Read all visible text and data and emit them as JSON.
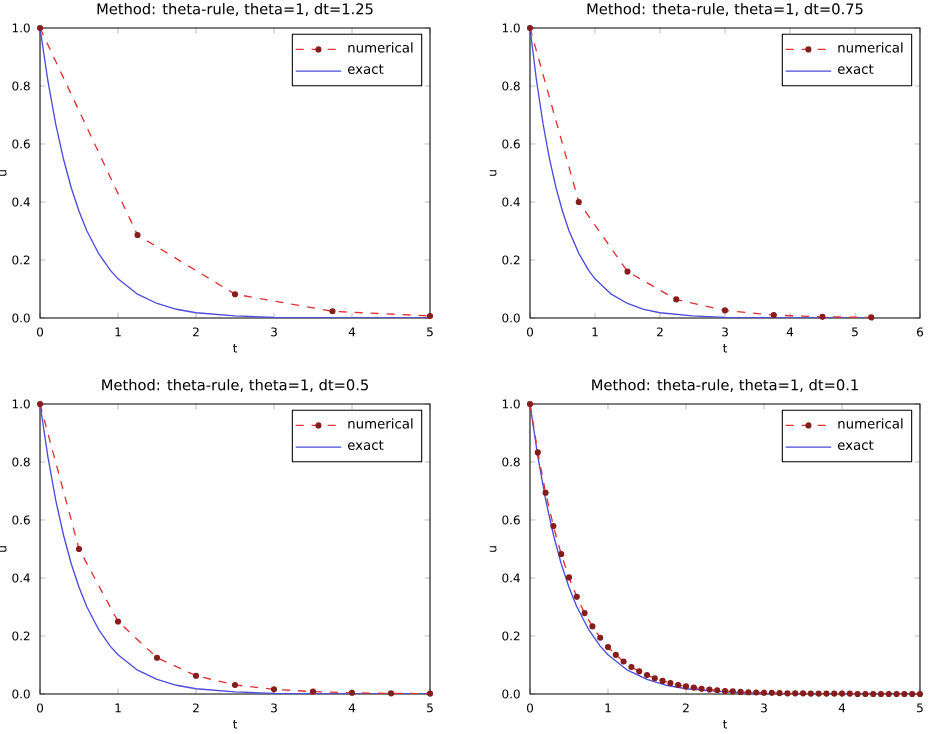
{
  "chart_data": [
    {
      "type": "line",
      "title": "Method: theta-rule, theta=1, dt=1.25",
      "xlabel": "t",
      "ylabel": "u",
      "legend": "top right",
      "xlim": [
        0,
        5
      ],
      "xticks": [
        0,
        1,
        2,
        3,
        4,
        5
      ],
      "ylim": [
        0,
        1
      ],
      "yticks": [
        {
          "value": 0,
          "label": "0.0"
        },
        {
          "value": 0.2,
          "label": "0.2"
        },
        {
          "value": 0.4,
          "label": "0.4"
        },
        {
          "value": 0.6,
          "label": "0.6"
        },
        {
          "value": 0.8,
          "label": "0.8"
        },
        {
          "value": 1,
          "label": "1.0"
        }
      ],
      "series": [
        {
          "name": "numerical",
          "color": "#e03030",
          "line_style": "dashed",
          "marker": "circle",
          "x": [
            0,
            1.25,
            2.5,
            3.75,
            5
          ],
          "values": [
            1,
            0.286,
            0.082,
            0.023,
            0.007
          ]
        },
        {
          "name": "exact",
          "color": "#4b4bdc",
          "line_style": "solid",
          "marker": "none",
          "x": [
            0,
            0.1,
            0.2,
            0.3,
            0.4,
            0.5,
            0.6,
            0.75,
            0.9,
            1,
            1.25,
            1.5,
            1.75,
            2,
            2.5,
            3,
            3.5,
            4,
            5
          ],
          "values": [
            1,
            0.819,
            0.67,
            0.549,
            0.449,
            0.368,
            0.301,
            0.223,
            0.165,
            0.135,
            0.082,
            0.05,
            0.03,
            0.018,
            0.007,
            0.002,
            0.001,
            0,
            0
          ]
        }
      ]
    },
    {
      "type": "line",
      "title": "Method: theta-rule, theta=1, dt=0.75",
      "xlabel": "t",
      "ylabel": "u",
      "legend": "top right",
      "xlim": [
        0,
        6
      ],
      "xticks": [
        0,
        1,
        2,
        3,
        4,
        5,
        6
      ],
      "ylim": [
        0,
        1
      ],
      "yticks": [
        {
          "value": 0,
          "label": "0.0"
        },
        {
          "value": 0.2,
          "label": "0.2"
        },
        {
          "value": 0.4,
          "label": "0.4"
        },
        {
          "value": 0.6,
          "label": "0.6"
        },
        {
          "value": 0.8,
          "label": "0.8"
        },
        {
          "value": 1,
          "label": "1.0"
        }
      ],
      "series": [
        {
          "name": "numerical",
          "color": "#e03030",
          "line_style": "dashed",
          "marker": "circle",
          "x": [
            0,
            0.75,
            1.5,
            2.25,
            3,
            3.75,
            4.5,
            5.25
          ],
          "values": [
            1,
            0.4,
            0.16,
            0.064,
            0.026,
            0.01,
            0.004,
            0.002
          ]
        },
        {
          "name": "exact",
          "color": "#4b4bdc",
          "line_style": "solid",
          "marker": "none",
          "x": [
            0,
            0.1,
            0.2,
            0.3,
            0.4,
            0.5,
            0.6,
            0.75,
            0.9,
            1,
            1.25,
            1.5,
            1.75,
            2,
            2.5,
            3,
            3.5,
            4,
            5,
            5.25
          ],
          "values": [
            1,
            0.819,
            0.67,
            0.549,
            0.449,
            0.368,
            0.301,
            0.223,
            0.165,
            0.135,
            0.082,
            0.05,
            0.03,
            0.018,
            0.007,
            0.002,
            0.001,
            0,
            0,
            0
          ]
        }
      ]
    },
    {
      "type": "line",
      "title": "Method: theta-rule, theta=1, dt=0.5",
      "xlabel": "t",
      "ylabel": "u",
      "legend": "top right",
      "xlim": [
        0,
        5
      ],
      "xticks": [
        0,
        1,
        2,
        3,
        4,
        5
      ],
      "ylim": [
        0,
        1
      ],
      "yticks": [
        {
          "value": 0,
          "label": "0.0"
        },
        {
          "value": 0.2,
          "label": "0.2"
        },
        {
          "value": 0.4,
          "label": "0.4"
        },
        {
          "value": 0.6,
          "label": "0.6"
        },
        {
          "value": 0.8,
          "label": "0.8"
        },
        {
          "value": 1,
          "label": "1.0"
        }
      ],
      "series": [
        {
          "name": "numerical",
          "color": "#e03030",
          "line_style": "dashed",
          "marker": "circle",
          "x": [
            0,
            0.5,
            1,
            1.5,
            2,
            2.5,
            3,
            3.5,
            4,
            4.5,
            5
          ],
          "values": [
            1,
            0.5,
            0.25,
            0.125,
            0.063,
            0.031,
            0.016,
            0.008,
            0.004,
            0.002,
            0.001
          ]
        },
        {
          "name": "exact",
          "color": "#4b4bdc",
          "line_style": "solid",
          "marker": "none",
          "x": [
            0,
            0.1,
            0.2,
            0.3,
            0.4,
            0.5,
            0.6,
            0.75,
            0.9,
            1,
            1.25,
            1.5,
            1.75,
            2,
            2.5,
            3,
            3.5,
            4,
            5
          ],
          "values": [
            1,
            0.819,
            0.67,
            0.549,
            0.449,
            0.368,
            0.301,
            0.223,
            0.165,
            0.135,
            0.082,
            0.05,
            0.03,
            0.018,
            0.007,
            0.002,
            0.001,
            0,
            0
          ]
        }
      ]
    },
    {
      "type": "line",
      "title": "Method: theta-rule, theta=1, dt=0.1",
      "xlabel": "t",
      "ylabel": "u",
      "legend": "top right",
      "xlim": [
        0,
        5
      ],
      "xticks": [
        0,
        1,
        2,
        3,
        4,
        5
      ],
      "ylim": [
        0,
        1
      ],
      "yticks": [
        {
          "value": 0,
          "label": "0.0"
        },
        {
          "value": 0.2,
          "label": "0.2"
        },
        {
          "value": 0.4,
          "label": "0.4"
        },
        {
          "value": 0.6,
          "label": "0.6"
        },
        {
          "value": 0.8,
          "label": "0.8"
        },
        {
          "value": 1,
          "label": "1.0"
        }
      ],
      "series": [
        {
          "name": "numerical",
          "color": "#e03030",
          "line_style": "dashed",
          "marker": "circle",
          "x": [
            0,
            0.1,
            0.2,
            0.3,
            0.4,
            0.5,
            0.6,
            0.7,
            0.8,
            0.9,
            1,
            1.1,
            1.2,
            1.3,
            1.4,
            1.5,
            1.6,
            1.7,
            1.8,
            1.9,
            2,
            2.1,
            2.2,
            2.3,
            2.4,
            2.5,
            2.6,
            2.7,
            2.8,
            2.9,
            3,
            3.1,
            3.2,
            3.3,
            3.4,
            3.5,
            3.6,
            3.7,
            3.8,
            3.9,
            4,
            4.1,
            4.2,
            4.3,
            4.4,
            4.5,
            4.6,
            4.7,
            4.8,
            4.9,
            5
          ],
          "values": [
            1,
            0.833,
            0.694,
            0.579,
            0.482,
            0.402,
            0.335,
            0.279,
            0.233,
            0.194,
            0.162,
            0.135,
            0.112,
            0.093,
            0.078,
            0.065,
            0.054,
            0.045,
            0.038,
            0.031,
            0.026,
            0.022,
            0.018,
            0.015,
            0.013,
            0.01,
            0.009,
            0.007,
            0.006,
            0.005,
            0.004,
            0.004,
            0.003,
            0.002,
            0.002,
            0.002,
            0.001,
            0.001,
            0.001,
            0.001,
            0.001,
            0.001,
            0,
            0,
            0,
            0,
            0,
            0,
            0,
            0,
            0
          ]
        },
        {
          "name": "exact",
          "color": "#4b4bdc",
          "line_style": "solid",
          "marker": "none",
          "x": [
            0,
            0.1,
            0.2,
            0.3,
            0.4,
            0.5,
            0.6,
            0.75,
            0.9,
            1,
            1.25,
            1.5,
            1.75,
            2,
            2.5,
            3,
            3.5,
            4,
            5
          ],
          "values": [
            1,
            0.819,
            0.67,
            0.549,
            0.449,
            0.368,
            0.301,
            0.223,
            0.165,
            0.135,
            0.082,
            0.05,
            0.03,
            0.018,
            0.007,
            0.002,
            0.001,
            0,
            0
          ]
        }
      ]
    }
  ]
}
